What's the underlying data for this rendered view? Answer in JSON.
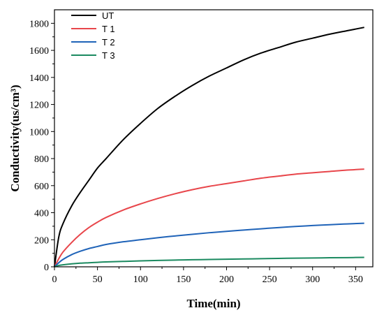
{
  "chart_data": {
    "type": "line",
    "xlabel": "Time(min)",
    "ylabel": "Conductivity(us/cm³)",
    "xlim": [
      0,
      370
    ],
    "ylim": [
      0,
      1900
    ],
    "xticks": [
      0,
      50,
      100,
      150,
      200,
      250,
      300,
      350
    ],
    "yticks": [
      0,
      200,
      400,
      600,
      800,
      1000,
      1200,
      1400,
      1600,
      1800
    ],
    "grid": false,
    "legend_position": "top-left",
    "x": [
      0,
      5,
      10,
      20,
      30,
      40,
      50,
      60,
      80,
      100,
      120,
      140,
      160,
      180,
      200,
      220,
      240,
      260,
      280,
      300,
      320,
      340,
      360
    ],
    "series": [
      {
        "name": "UT",
        "color": "#000000",
        "values": [
          0,
          220,
          320,
          450,
          550,
          640,
          730,
          800,
          940,
          1060,
          1170,
          1260,
          1340,
          1410,
          1470,
          1530,
          1580,
          1620,
          1660,
          1690,
          1720,
          1745,
          1770
        ]
      },
      {
        "name": "T 1",
        "color": "#e8464b",
        "values": [
          0,
          60,
          110,
          180,
          240,
          290,
          330,
          365,
          420,
          465,
          505,
          540,
          570,
          595,
          615,
          635,
          655,
          670,
          685,
          695,
          705,
          715,
          722
        ]
      },
      {
        "name": "T 2",
        "color": "#1f63b8",
        "values": [
          0,
          30,
          55,
          90,
          115,
          135,
          150,
          165,
          185,
          200,
          215,
          228,
          240,
          252,
          262,
          272,
          281,
          290,
          298,
          305,
          311,
          317,
          322
        ]
      },
      {
        "name": "T 3",
        "color": "#1b8a60",
        "values": [
          0,
          10,
          15,
          22,
          27,
          30,
          33,
          36,
          40,
          44,
          47,
          50,
          52,
          54,
          56,
          58,
          60,
          62,
          64,
          65,
          67,
          68,
          70
        ]
      }
    ]
  }
}
